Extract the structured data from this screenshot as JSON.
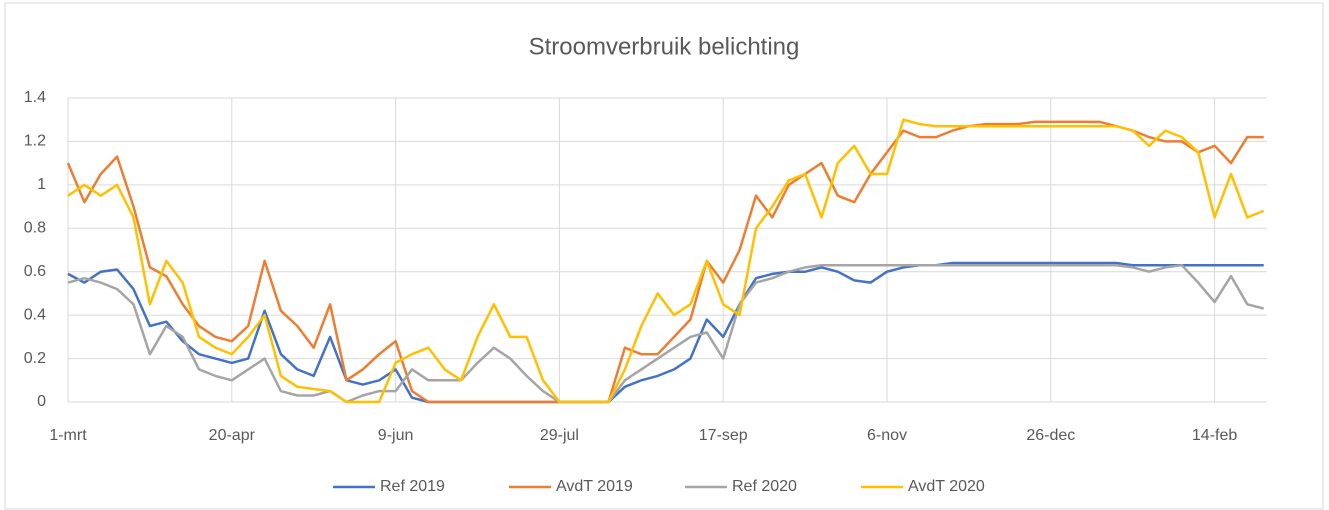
{
  "chart_data": {
    "type": "line",
    "title": "Stroomverbruik belichting",
    "x": [
      0,
      5,
      10,
      15,
      20,
      25,
      30,
      35,
      40,
      45,
      50,
      55,
      60,
      65,
      70,
      75,
      80,
      85,
      90,
      95,
      100,
      105,
      110,
      115,
      120,
      125,
      130,
      135,
      140,
      145,
      150,
      155,
      160,
      165,
      170,
      175,
      180,
      185,
      190,
      195,
      200,
      205,
      210,
      215,
      220,
      225,
      230,
      235,
      240,
      245,
      250,
      255,
      260,
      265,
      270,
      275,
      280,
      285,
      290,
      295,
      300,
      305,
      310,
      315,
      320,
      325,
      330,
      335,
      340,
      345,
      350,
      355,
      360,
      365
    ],
    "xlim": [
      0,
      366
    ],
    "xticks": [
      {
        "value": 0,
        "label": "1-mrt"
      },
      {
        "value": 50,
        "label": "20-apr"
      },
      {
        "value": 100,
        "label": "9-jun"
      },
      {
        "value": 150,
        "label": "29-jul"
      },
      {
        "value": 200,
        "label": "17-sep"
      },
      {
        "value": 250,
        "label": "6-nov"
      },
      {
        "value": 300,
        "label": "26-dec"
      },
      {
        "value": 350,
        "label": "14-feb"
      }
    ],
    "ylim": [
      0,
      1.4
    ],
    "yticks": [
      0,
      0.2,
      0.4,
      0.6,
      0.8,
      1,
      1.2,
      1.4
    ],
    "grid": true,
    "legend": "bottom",
    "series": [
      {
        "name": "Ref 2019",
        "color": "#4472c4",
        "values": [
          0.59,
          0.55,
          0.6,
          0.61,
          0.52,
          0.35,
          0.37,
          0.28,
          0.22,
          0.2,
          0.18,
          0.2,
          0.42,
          0.22,
          0.15,
          0.12,
          0.3,
          0.1,
          0.08,
          0.1,
          0.15,
          0.02,
          0,
          0,
          0,
          0,
          0,
          0,
          0,
          0,
          0,
          0,
          0,
          0,
          0.07,
          0.1,
          0.12,
          0.15,
          0.2,
          0.38,
          0.3,
          0.45,
          0.57,
          0.59,
          0.6,
          0.6,
          0.62,
          0.6,
          0.56,
          0.55,
          0.6,
          0.62,
          0.63,
          0.63,
          0.64,
          0.64,
          0.64,
          0.64,
          0.64,
          0.64,
          0.64,
          0.64,
          0.64,
          0.64,
          0.64,
          0.63,
          0.63,
          0.63,
          0.63,
          0.63,
          0.63,
          0.63,
          0.63,
          0.63
        ]
      },
      {
        "name": "AvdT 2019",
        "color": "#ed7d31",
        "values": [
          1.1,
          0.92,
          1.05,
          1.13,
          0.9,
          0.62,
          0.58,
          0.45,
          0.35,
          0.3,
          0.28,
          0.35,
          0.65,
          0.42,
          0.35,
          0.25,
          0.45,
          0.1,
          0.15,
          0.22,
          0.28,
          0.05,
          0,
          0,
          0,
          0,
          0,
          0,
          0,
          0,
          0,
          0,
          0,
          0,
          0.25,
          0.22,
          0.22,
          0.3,
          0.38,
          0.65,
          0.55,
          0.7,
          0.95,
          0.85,
          1.0,
          1.05,
          1.1,
          0.95,
          0.92,
          1.05,
          1.15,
          1.25,
          1.22,
          1.22,
          1.25,
          1.27,
          1.28,
          1.28,
          1.28,
          1.29,
          1.29,
          1.29,
          1.29,
          1.29,
          1.27,
          1.25,
          1.22,
          1.2,
          1.2,
          1.15,
          1.18,
          1.1,
          1.22,
          1.22
        ]
      },
      {
        "name": "Ref 2020",
        "color": "#a5a5a5",
        "values": [
          0.55,
          0.57,
          0.55,
          0.52,
          0.45,
          0.22,
          0.35,
          0.3,
          0.15,
          0.12,
          0.1,
          0.15,
          0.2,
          0.05,
          0.03,
          0.03,
          0.05,
          0,
          0.03,
          0.05,
          0.05,
          0.15,
          0.1,
          0.1,
          0.1,
          0.18,
          0.25,
          0.2,
          0.12,
          0.05,
          0,
          0,
          0,
          0,
          0.1,
          0.15,
          0.2,
          0.25,
          0.3,
          0.32,
          0.2,
          0.45,
          0.55,
          0.57,
          0.6,
          0.62,
          0.63,
          0.63,
          0.63,
          0.63,
          0.63,
          0.63,
          0.63,
          0.63,
          0.63,
          0.63,
          0.63,
          0.63,
          0.63,
          0.63,
          0.63,
          0.63,
          0.63,
          0.63,
          0.63,
          0.62,
          0.6,
          0.62,
          0.63,
          0.55,
          0.46,
          0.58,
          0.45,
          0.43
        ]
      },
      {
        "name": "AvdT 2020",
        "color": "#ffc000",
        "values": [
          0.95,
          1.0,
          0.95,
          1.0,
          0.85,
          0.45,
          0.65,
          0.55,
          0.3,
          0.25,
          0.22,
          0.3,
          0.4,
          0.12,
          0.07,
          0.06,
          0.05,
          0,
          0,
          0,
          0.18,
          0.22,
          0.25,
          0.15,
          0.1,
          0.3,
          0.45,
          0.3,
          0.3,
          0.1,
          0,
          0,
          0,
          0,
          0.15,
          0.35,
          0.5,
          0.4,
          0.45,
          0.65,
          0.45,
          0.4,
          0.8,
          0.9,
          1.02,
          1.05,
          0.85,
          1.1,
          1.18,
          1.05,
          1.05,
          1.3,
          1.28,
          1.27,
          1.27,
          1.27,
          1.27,
          1.27,
          1.27,
          1.27,
          1.27,
          1.27,
          1.27,
          1.27,
          1.27,
          1.25,
          1.18,
          1.25,
          1.22,
          1.15,
          0.85,
          1.05,
          0.85,
          0.88
        ]
      }
    ]
  }
}
